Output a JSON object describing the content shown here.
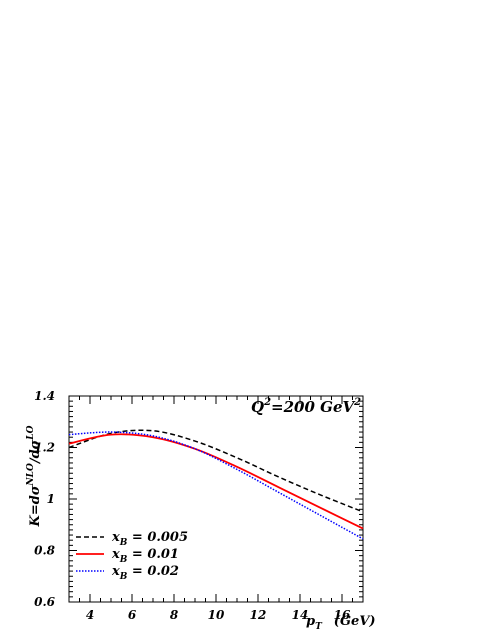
{
  "chart_data": {
    "type": "line",
    "annotation": {
      "base": "Q",
      "sup": "2",
      "rest": "=200 GeV",
      "sup2": "2"
    },
    "xlabel": {
      "base": "p",
      "sub": "T",
      "unit": "(GeV)"
    },
    "ylabel": {
      "pre": "K=dσ",
      "sup1": "NLO",
      "mid": "/dσ",
      "sup2": "LO"
    },
    "xlim": [
      3,
      17
    ],
    "ylim": [
      0.6,
      1.4
    ],
    "x_ticks": [
      4,
      6,
      8,
      10,
      12,
      14,
      16
    ],
    "y_ticks": [
      0.6,
      0.8,
      1,
      1.2,
      1.4
    ],
    "y_tick_labels": [
      "0.6",
      "0.8",
      "1",
      "1.2",
      "1.4"
    ],
    "grid": false,
    "legend_position": "bottom-left",
    "series": [
      {
        "name": "x",
        "sub": "B",
        "rest": " = 0.005",
        "color": "#000000",
        "style": "dashed",
        "x": [
          3,
          5,
          7,
          9,
          11,
          13,
          15,
          17
        ],
        "y": [
          1.2,
          1.255,
          1.265,
          1.225,
          1.16,
          1.085,
          1.015,
          0.95
        ]
      },
      {
        "name": "x",
        "sub": "B",
        "rest": " = 0.01",
        "color": "#ff0000",
        "style": "solid",
        "x": [
          3,
          5,
          7,
          9,
          11,
          13,
          15,
          17
        ],
        "y": [
          1.215,
          1.25,
          1.24,
          1.195,
          1.125,
          1.045,
          0.965,
          0.885
        ]
      },
      {
        "name": "x",
        "sub": "B",
        "rest": " = 0.02",
        "color": "#0000ff",
        "style": "dotted",
        "x": [
          3,
          5,
          7,
          9,
          11,
          13,
          15,
          17
        ],
        "y": [
          1.25,
          1.26,
          1.245,
          1.195,
          1.115,
          1.025,
          0.935,
          0.845
        ]
      }
    ]
  }
}
